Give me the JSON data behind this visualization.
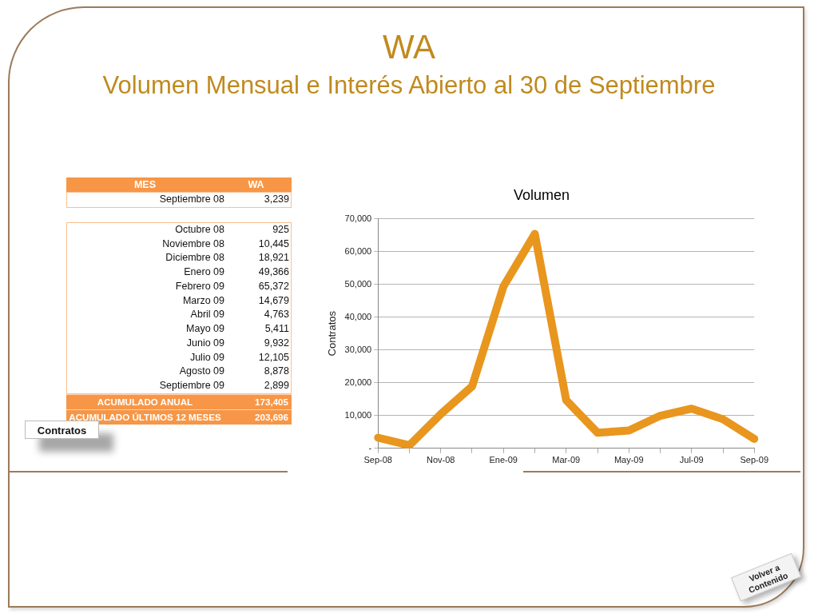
{
  "chart_data": [
    {
      "type": "other",
      "title": "WA",
      "subtitle": "Volumen Mensual e Interés Abierto al 30 de Septiembre",
      "xlabel": "MES",
      "ylabel": "WA",
      "color": "#f79646",
      "categories": [
        "Septiembre 08",
        "Octubre 08",
        "Noviembre 08",
        "Diciembre 08",
        "Enero 09",
        "Febrero 09",
        "Marzo 09",
        "Abril 09",
        "Mayo 09",
        "Junio 09",
        "Julio 09",
        "Agosto 09",
        "Septiembre 09"
      ],
      "values": [
        3239,
        925,
        10445,
        18921,
        49366,
        65372,
        14679,
        4763,
        5411,
        9932,
        12105,
        8878,
        2899
      ],
      "value_labels": [
        "3,239",
        "925",
        "10,445",
        "18,921",
        "49,366",
        "65,372",
        "14,679",
        "4,763",
        "5,411",
        "9,932",
        "12,105",
        "8,878",
        "2,899"
      ],
      "annotations": [
        "ACUMULADO ANUAL",
        "173,405",
        "ACUMULADO ÚLTIMOS 12 MESES",
        "203,696",
        "Contratos",
        "Volver a Contenido"
      ]
    },
    {
      "type": "line",
      "title": "Volumen",
      "ylabel": "Contratos",
      "color": "#e8961e",
      "categories": [
        "Sep-08",
        null,
        "Nov-08",
        null,
        "Ene-09",
        null,
        "Mar-09",
        null,
        "May-09",
        null,
        "Jul-09",
        null,
        "Sep-09"
      ],
      "values": [
        3239,
        925,
        10445,
        18921,
        49366,
        65372,
        14679,
        4763,
        5411,
        9932,
        12105,
        8878,
        2899
      ],
      "ylim": [
        0,
        70000
      ],
      "yticks": [
        {
          "value": 0,
          "label": "-"
        },
        {
          "value": 10000,
          "label": "10,000"
        },
        {
          "value": 20000,
          "label": "20,000"
        },
        {
          "value": 30000,
          "label": "30,000"
        },
        {
          "value": 40000,
          "label": "40,000"
        },
        {
          "value": 50000,
          "label": "50,000"
        },
        {
          "value": 60000,
          "label": "60,000"
        },
        {
          "value": 70000,
          "label": "70,000"
        }
      ],
      "grid": "y",
      "marker": "none",
      "line_style": "solid"
    }
  ]
}
